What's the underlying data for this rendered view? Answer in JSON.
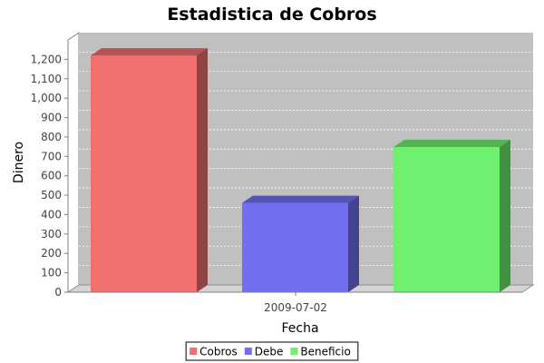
{
  "chart_data": {
    "type": "bar",
    "title": "Estadistica de Cobros",
    "xlabel": "Fecha",
    "ylabel": "Dinero",
    "categories": [
      "2009-07-02"
    ],
    "series": [
      {
        "name": "Cobros",
        "values": [
          1220
        ],
        "color": "#f07070"
      },
      {
        "name": "Debe",
        "values": [
          460
        ],
        "color": "#7070f0"
      },
      {
        "name": "Beneficio",
        "values": [
          748
        ],
        "color": "#70f070"
      }
    ],
    "ylim": [
      0,
      1300
    ],
    "yticks": [
      0,
      100,
      200,
      300,
      400,
      500,
      600,
      700,
      800,
      900,
      1000,
      1100,
      1200
    ],
    "ytick_labels": [
      "0",
      "100",
      "200",
      "300",
      "400",
      "500",
      "600",
      "700",
      "800",
      "900",
      "1,000",
      "1,100",
      "1,200"
    ],
    "grid": true,
    "three_d": true,
    "legend_position": "bottom",
    "plot_background": "#c0c0c0"
  }
}
